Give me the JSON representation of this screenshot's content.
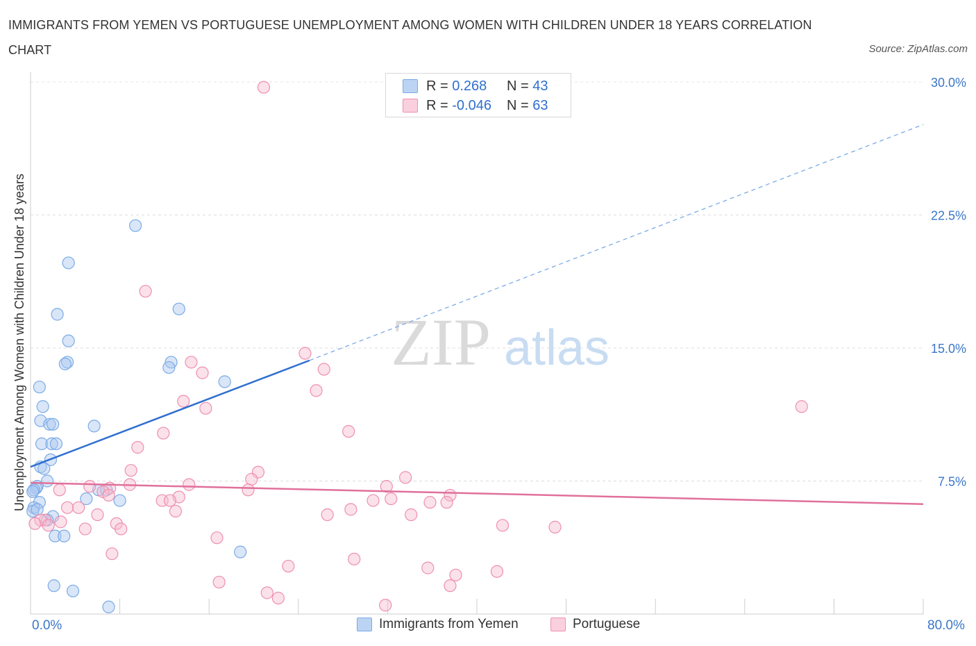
{
  "title": "IMMIGRANTS FROM YEMEN VS PORTUGUESE UNEMPLOYMENT AMONG WOMEN WITH CHILDREN UNDER 18 YEARS CORRELATION CHART",
  "source": "Source: ZipAtlas.com",
  "watermark": {
    "zip": "ZIP",
    "atlas": "atlas"
  },
  "legend_top": {
    "rows": [
      {
        "r_label": "R = ",
        "r_value": "0.268",
        "n_label": "N = ",
        "n_value": "43",
        "color": "#aac8f0"
      },
      {
        "r_label": "R = ",
        "r_value": "-0.046",
        "n_label": "N = ",
        "n_value": "63",
        "color": "#f7bcd0"
      }
    ]
  },
  "legend_bottom": {
    "items": [
      {
        "label": "Immigrants from Yemen",
        "color": "#aac8f0"
      },
      {
        "label": "Portuguese",
        "color": "#f7bcd0"
      }
    ]
  },
  "chart_data": {
    "type": "scatter",
    "title": "IMMIGRANTS FROM YEMEN VS PORTUGUESE UNEMPLOYMENT AMONG WOMEN WITH CHILDREN UNDER 18 YEARS CORRELATION CHART",
    "xlabel": "",
    "ylabel": "Unemployment Among Women with Children Under 18 years",
    "xlim": [
      0,
      80
    ],
    "ylim": [
      0,
      30
    ],
    "x_tick_labels": [
      "0.0%",
      "80.0%"
    ],
    "y_ticks": [
      7.5,
      15.0,
      22.5,
      30.0
    ],
    "y_tick_labels": [
      "7.5%",
      "15.0%",
      "22.5%",
      "30.0%"
    ],
    "grid": true,
    "series": [
      {
        "name": "Immigrants from Yemen",
        "color": "#7aaae6",
        "fill": "#aac8f0",
        "points": [
          [
            9.4,
            21.9
          ],
          [
            3.4,
            19.8
          ],
          [
            2.4,
            16.9
          ],
          [
            3.4,
            15.4
          ],
          [
            3.3,
            14.2
          ],
          [
            3.1,
            14.1
          ],
          [
            13.3,
            17.2
          ],
          [
            12.6,
            14.2
          ],
          [
            12.4,
            13.9
          ],
          [
            17.4,
            13.1
          ],
          [
            0.8,
            12.8
          ],
          [
            1.1,
            11.7
          ],
          [
            0.9,
            10.9
          ],
          [
            1.7,
            10.7
          ],
          [
            2.0,
            10.7
          ],
          [
            5.7,
            10.6
          ],
          [
            1.0,
            9.6
          ],
          [
            1.9,
            9.6
          ],
          [
            2.3,
            9.6
          ],
          [
            1.8,
            8.7
          ],
          [
            0.9,
            8.3
          ],
          [
            1.2,
            8.2
          ],
          [
            1.5,
            7.5
          ],
          [
            0.6,
            7.2
          ],
          [
            0.5,
            7.1
          ],
          [
            0.3,
            7.0
          ],
          [
            0.2,
            6.9
          ],
          [
            6.1,
            7.0
          ],
          [
            6.8,
            7.0
          ],
          [
            5.0,
            6.5
          ],
          [
            8.0,
            6.4
          ],
          [
            0.8,
            6.3
          ],
          [
            0.3,
            6.0
          ],
          [
            0.2,
            5.8
          ],
          [
            2.0,
            5.5
          ],
          [
            1.5,
            5.3
          ],
          [
            2.2,
            4.4
          ],
          [
            3.0,
            4.4
          ],
          [
            18.8,
            3.5
          ],
          [
            2.1,
            1.6
          ],
          [
            3.8,
            1.3
          ],
          [
            7.0,
            0.4
          ],
          [
            0.6,
            5.9
          ]
        ]
      },
      {
        "name": "Portuguese",
        "color": "#ee8fae",
        "fill": "#f7bcd0",
        "points": [
          [
            20.9,
            29.7
          ],
          [
            10.3,
            18.2
          ],
          [
            24.6,
            14.7
          ],
          [
            14.4,
            14.2
          ],
          [
            15.4,
            13.6
          ],
          [
            26.3,
            13.8
          ],
          [
            25.6,
            12.6
          ],
          [
            13.7,
            12.0
          ],
          [
            15.7,
            11.6
          ],
          [
            69.1,
            11.7
          ],
          [
            28.5,
            10.3
          ],
          [
            11.9,
            10.2
          ],
          [
            9.6,
            9.4
          ],
          [
            9.0,
            8.1
          ],
          [
            20.4,
            8.0
          ],
          [
            19.8,
            7.6
          ],
          [
            33.6,
            7.7
          ],
          [
            8.9,
            7.3
          ],
          [
            14.2,
            7.3
          ],
          [
            31.9,
            7.2
          ],
          [
            19.5,
            7.0
          ],
          [
            2.6,
            7.0
          ],
          [
            5.3,
            7.2
          ],
          [
            7.1,
            7.1
          ],
          [
            6.5,
            6.9
          ],
          [
            7.0,
            6.7
          ],
          [
            13.3,
            6.6
          ],
          [
            30.7,
            6.4
          ],
          [
            32.3,
            6.5
          ],
          [
            37.6,
            6.7
          ],
          [
            35.8,
            6.3
          ],
          [
            37.3,
            6.3
          ],
          [
            11.8,
            6.4
          ],
          [
            12.5,
            6.4
          ],
          [
            3.3,
            6.0
          ],
          [
            4.3,
            6.0
          ],
          [
            13.0,
            5.8
          ],
          [
            6.0,
            5.6
          ],
          [
            26.6,
            5.6
          ],
          [
            28.7,
            5.9
          ],
          [
            34.1,
            5.6
          ],
          [
            2.7,
            5.2
          ],
          [
            1.3,
            5.3
          ],
          [
            0.9,
            5.3
          ],
          [
            7.7,
            5.1
          ],
          [
            8.1,
            4.8
          ],
          [
            4.9,
            4.8
          ],
          [
            42.3,
            5.0
          ],
          [
            47.0,
            4.9
          ],
          [
            16.7,
            4.3
          ],
          [
            7.3,
            3.4
          ],
          [
            29.0,
            3.1
          ],
          [
            23.1,
            2.7
          ],
          [
            35.6,
            2.6
          ],
          [
            38.1,
            2.2
          ],
          [
            41.8,
            2.4
          ],
          [
            16.9,
            1.8
          ],
          [
            37.6,
            1.6
          ],
          [
            21.2,
            1.2
          ],
          [
            22.2,
            0.9
          ],
          [
            31.8,
            0.5
          ],
          [
            0.4,
            5.1
          ],
          [
            1.6,
            5.0
          ]
        ]
      }
    ],
    "trend_lines": [
      {
        "series": "Immigrants from Yemen",
        "x_start": 0,
        "y_start": 8.3,
        "x_solid_end": 25.0,
        "y_solid_end": 14.3,
        "x_end": 80,
        "y_end": 27.6,
        "color": "#2f6fd0"
      },
      {
        "series": "Portuguese",
        "x_start": 0,
        "y_start": 7.4,
        "x_end": 80,
        "y_end": 6.2,
        "color": "#e0709a"
      }
    ]
  }
}
